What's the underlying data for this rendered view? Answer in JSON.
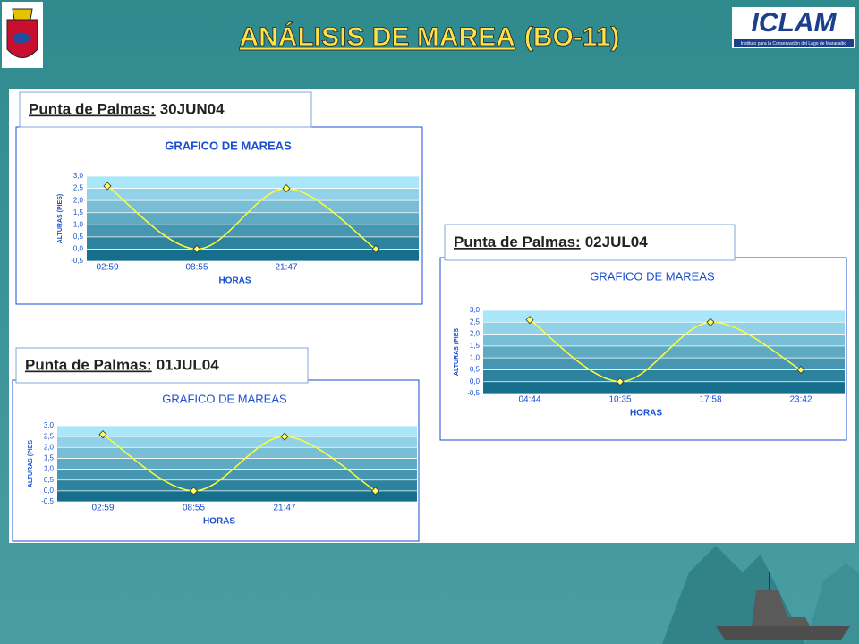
{
  "header": {
    "title": "ANÁLISIS DE MAREA",
    "title_suffix": "(BO-11)",
    "logo_text": "ICLAM",
    "logo_subtitle": "Instituto para la Conservación del Lago de Maracaibo"
  },
  "chart_data": [
    {
      "type": "line",
      "caption_place": "Punta de Palmas:",
      "caption_date": "30JUN04",
      "title": "GRAFICO DE MAREAS",
      "x_label": "HORAS",
      "y_label": "ALTURAS (PIES)",
      "categories": [
        "02:59",
        "08:55",
        "21:47",
        null
      ],
      "values": [
        2.6,
        0.0,
        2.5,
        0.0
      ],
      "line_color": "#ffff33",
      "marker_color": "#ffff66",
      "ylim": [
        -0.5,
        3.0
      ],
      "yticks": [
        {
          "value": -0.5,
          "label": "-0,5"
        },
        {
          "value": 0,
          "label": "0,0"
        },
        {
          "value": 0.5,
          "label": "0,5"
        },
        {
          "value": 1,
          "label": "1,0"
        },
        {
          "value": 1.5,
          "label": "1,5"
        },
        {
          "value": 2,
          "label": "2,0"
        },
        {
          "value": 2.5,
          "label": "2,5"
        },
        {
          "value": 3,
          "label": "3,0"
        }
      ],
      "grid": true
    },
    {
      "type": "line",
      "caption_place": "Punta de Palmas:",
      "caption_date": "01JUL04",
      "title": "GRAFICO DE MAREAS",
      "x_label": "HORAS",
      "y_label": "ALTURAS (PIES",
      "categories": [
        "02:59",
        "08:55",
        "21:47",
        null
      ],
      "values": [
        2.6,
        0.0,
        2.5,
        0.0
      ],
      "line_color": "#ffff33",
      "marker_color": "#ffff66",
      "ylim": [
        -0.5,
        3.0
      ],
      "yticks": [
        {
          "value": -0.5,
          "label": "-0,5"
        },
        {
          "value": 0,
          "label": "0,0"
        },
        {
          "value": 0.5,
          "label": "0,5"
        },
        {
          "value": 1,
          "label": "1,0"
        },
        {
          "value": 1.5,
          "label": "1,5"
        },
        {
          "value": 2,
          "label": "2,0"
        },
        {
          "value": 2.5,
          "label": "2,5"
        },
        {
          "value": 3,
          "label": "3,0"
        }
      ],
      "grid": true
    },
    {
      "type": "line",
      "caption_place": "Punta de Palmas:",
      "caption_date": "02JUL04",
      "title": "GRAFICO DE MAREAS",
      "x_label": "HORAS",
      "y_label": "ALTURAS (PIES",
      "categories": [
        "04:44",
        "10:35",
        "17:58",
        "23:42"
      ],
      "values": [
        2.6,
        0.0,
        2.5,
        0.5
      ],
      "line_color": "#ffff33",
      "marker_color": "#ffff66",
      "ylim": [
        -0.5,
        3.0
      ],
      "yticks": [
        {
          "value": -0.5,
          "label": "-0,5"
        },
        {
          "value": 0,
          "label": "0,0"
        },
        {
          "value": 0.5,
          "label": "0,5"
        },
        {
          "value": 1,
          "label": "1,0"
        },
        {
          "value": 1.5,
          "label": "1,5"
        },
        {
          "value": 2,
          "label": "2,0"
        },
        {
          "value": 2.5,
          "label": "2,5"
        },
        {
          "value": 3,
          "label": "3,0"
        }
      ],
      "grid": true
    }
  ]
}
